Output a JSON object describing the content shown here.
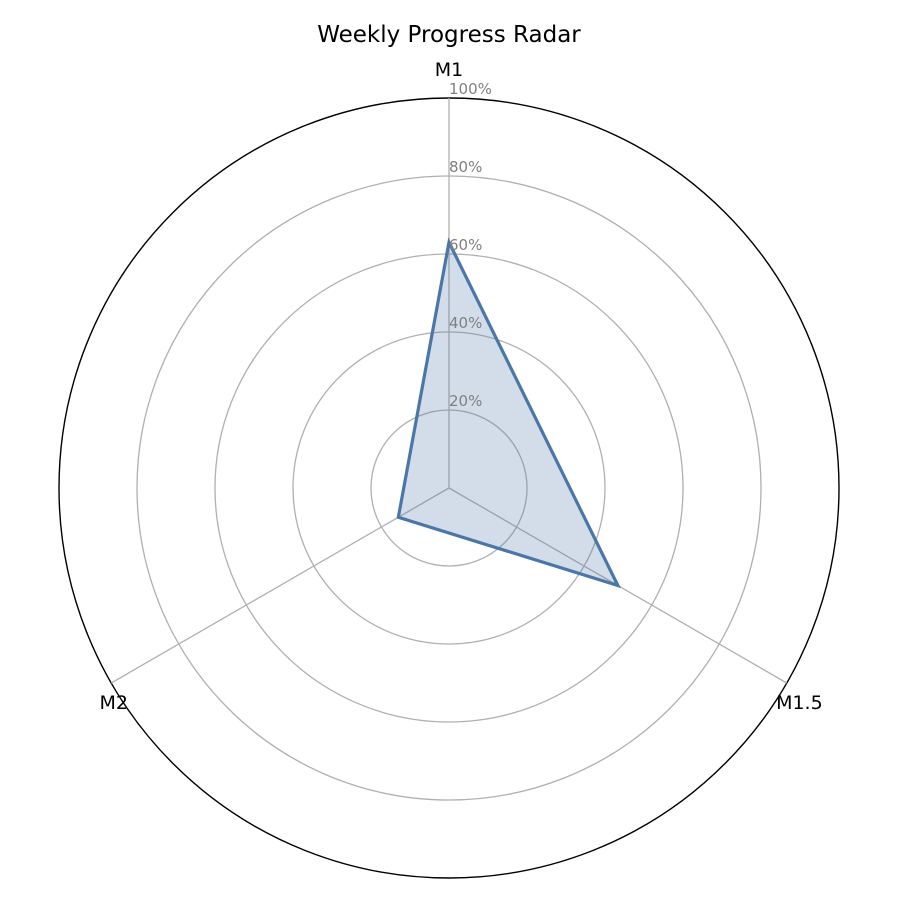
{
  "chart_data": {
    "type": "radar",
    "title": "Weekly Progress Radar",
    "categories": [
      "M1",
      "M1.5",
      "M2"
    ],
    "values": [
      63,
      50,
      15
    ],
    "rlim": [
      0,
      100
    ],
    "radial_ticks": [
      20,
      40,
      60,
      80,
      100
    ],
    "radial_tick_labels": [
      "20%",
      "40%",
      "60%",
      "80%",
      "100%"
    ],
    "grid": true,
    "colors": {
      "line": "#4a76a8",
      "fill": "#4a76a8",
      "grid": "#b0b0b0",
      "frame": "#000000",
      "tick_label": "#808080"
    }
  }
}
